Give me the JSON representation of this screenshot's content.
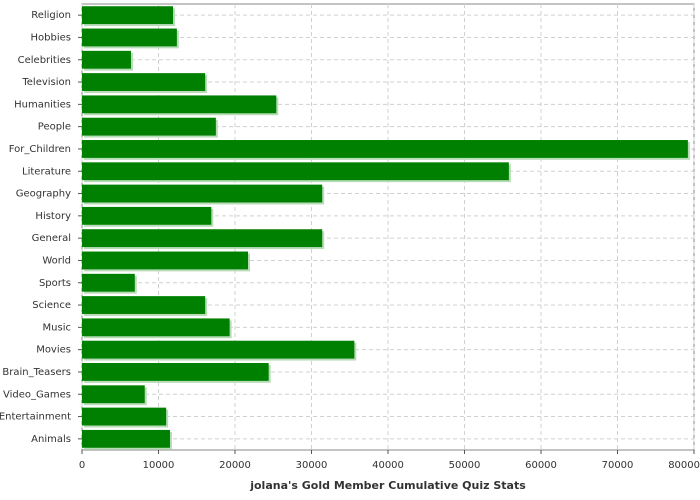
{
  "chart_data": {
    "type": "barh",
    "xlabel": "jolana's Gold Member Cumulative Quiz Stats",
    "categories": [
      "Religion",
      "Hobbies",
      "Celebrities",
      "Television",
      "Humanities",
      "People",
      "For_Children",
      "Literature",
      "Geography",
      "History",
      "General",
      "World",
      "Sports",
      "Science",
      "Music",
      "Movies",
      "Brain_Teasers",
      "Video_Games",
      "Entertainment",
      "Animals"
    ],
    "values": [
      11900,
      12400,
      6400,
      16100,
      25400,
      17500,
      79200,
      55800,
      31400,
      16900,
      31400,
      21700,
      6900,
      16100,
      19300,
      35600,
      24400,
      8200,
      11000,
      11500
    ],
    "color": "#008000",
    "xlim": [
      0,
      80000
    ],
    "xticks": [
      0,
      10000,
      20000,
      30000,
      40000,
      50000,
      60000,
      70000,
      80000
    ],
    "grid": true
  }
}
